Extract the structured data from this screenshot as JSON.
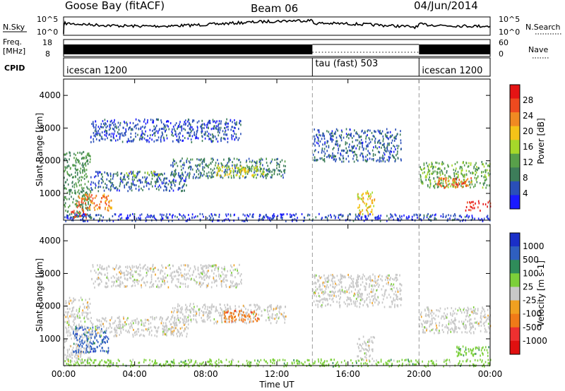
{
  "header": {
    "station": "Goose Bay (fitACF)",
    "beam": "Beam 06",
    "date": "04/Jun/2014"
  },
  "top_panels": {
    "nsky_label": "N.Sky",
    "nsky_ticks": [
      "10^5",
      "10^0"
    ],
    "nsearch_label": "N.Search",
    "freq_label": "Freq.",
    "freq_unit": "[MHz]",
    "freq_ticks": [
      "18",
      "8"
    ],
    "nave_ticks": [
      "60",
      "0"
    ],
    "nave_label": "Nave",
    "cpid_label": "CPID",
    "cpid_segments": [
      {
        "label": "icescan 1200",
        "start_h": 0,
        "end_h": 14
      },
      {
        "label": "tau (fast) 503",
        "start_h": 14,
        "end_h": 20
      },
      {
        "label": "icescan 1200",
        "start_h": 20,
        "end_h": 24
      }
    ]
  },
  "chart_data": [
    {
      "type": "heatmap",
      "title": "",
      "xlabel": "Time UT",
      "ylabel": "Slant Range [km]",
      "xlim": [
        0,
        24
      ],
      "ylim": [
        180,
        4500
      ],
      "x_ticks": [
        "00:00",
        "04:00",
        "08:00",
        "12:00",
        "16:00",
        "20:00",
        "00:00"
      ],
      "y_ticks": [
        1000,
        2000,
        3000,
        4000
      ],
      "colorbar": {
        "label": "Power [dB]",
        "ticks": [
          4,
          8,
          12,
          16,
          20,
          24,
          28
        ],
        "range": [
          0,
          30
        ],
        "colors": [
          "#1a1aff",
          "#2a4fb8",
          "#3d7d5a",
          "#58a04a",
          "#a6d82a",
          "#f5c318",
          "#f08a22",
          "#ee4a1f",
          "#e51414"
        ]
      },
      "echo_regions": [
        {
          "t0": 0.0,
          "t1": 1.5,
          "r0": 300,
          "r1": 2300,
          "level": 10
        },
        {
          "t0": 0.7,
          "t1": 2.7,
          "r0": 500,
          "r1": 1000,
          "level": 22
        },
        {
          "t0": 0.4,
          "t1": 1.3,
          "r0": 250,
          "r1": 500,
          "level": 25
        },
        {
          "t0": 1.5,
          "t1": 7.0,
          "r0": 1100,
          "r1": 1700,
          "level": 6
        },
        {
          "t0": 3.5,
          "t1": 5.5,
          "r0": 1550,
          "r1": 1700,
          "level": 14
        },
        {
          "t0": 6.0,
          "t1": 12.5,
          "r0": 1500,
          "r1": 2100,
          "level": 8
        },
        {
          "t0": 8.5,
          "t1": 11.5,
          "r0": 1550,
          "r1": 1900,
          "level": 16
        },
        {
          "t0": 1.5,
          "t1": 10.0,
          "r0": 2600,
          "r1": 3300,
          "level": 5
        },
        {
          "t0": 14.0,
          "t1": 19.0,
          "r0": 2000,
          "r1": 3000,
          "level": 6
        },
        {
          "t0": 16.5,
          "t1": 17.5,
          "r0": 350,
          "r1": 1100,
          "level": 18
        },
        {
          "t0": 20.0,
          "t1": 24.0,
          "r0": 1200,
          "r1": 2000,
          "level": 12
        },
        {
          "t0": 21.0,
          "t1": 23.0,
          "r0": 1200,
          "r1": 1500,
          "level": 24
        },
        {
          "t0": 22.5,
          "t1": 24.0,
          "r0": 500,
          "r1": 800,
          "level": 27
        },
        {
          "t0": 0.0,
          "t1": 24.0,
          "r0": 180,
          "r1": 400,
          "level": 4
        }
      ]
    },
    {
      "type": "heatmap",
      "title": "",
      "xlabel": "Time UT",
      "ylabel": "Slant Range [km]",
      "xlim": [
        0,
        24
      ],
      "ylim": [
        180,
        4500
      ],
      "x_ticks": [
        "00:00",
        "04:00",
        "08:00",
        "12:00",
        "16:00",
        "20:00",
        "00:00"
      ],
      "y_ticks": [
        1000,
        2000,
        3000,
        4000
      ],
      "colorbar": {
        "label": "Velocity [m s-1]",
        "ticks": [
          1000,
          500,
          100,
          25,
          -25,
          -100,
          -500,
          -1000
        ],
        "colors": [
          "#1a2fc8",
          "#2f5fc0",
          "#2f8c5a",
          "#7ccf3a",
          "#c8c8c8",
          "#f0a020",
          "#f07a18",
          "#ee3030",
          "#e01010"
        ]
      },
      "echo_regions": [
        {
          "t0": 0.0,
          "t1": 1.5,
          "r0": 300,
          "r1": 2300,
          "v": 0
        },
        {
          "t0": 0.5,
          "t1": 2.5,
          "r0": 600,
          "r1": 1400,
          "v": 300
        },
        {
          "t0": 1.5,
          "t1": 7.0,
          "r0": 1100,
          "r1": 1700,
          "v": 0
        },
        {
          "t0": 6.0,
          "t1": 12.5,
          "r0": 1500,
          "r1": 2100,
          "v": 0
        },
        {
          "t0": 9.0,
          "t1": 11.0,
          "r0": 1550,
          "r1": 1900,
          "v": -300
        },
        {
          "t0": 1.5,
          "t1": 10.0,
          "r0": 2600,
          "r1": 3300,
          "v": 0
        },
        {
          "t0": 14.0,
          "t1": 19.0,
          "r0": 2000,
          "r1": 3000,
          "v": 0
        },
        {
          "t0": 16.5,
          "t1": 17.5,
          "r0": 350,
          "r1": 1100,
          "v": 0
        },
        {
          "t0": 20.0,
          "t1": 24.0,
          "r0": 1200,
          "r1": 2000,
          "v": 0
        },
        {
          "t0": 22.0,
          "t1": 24.0,
          "r0": 500,
          "r1": 800,
          "v": 80
        },
        {
          "t0": 0.0,
          "t1": 24.0,
          "r0": 180,
          "r1": 400,
          "v": 60
        }
      ]
    }
  ]
}
